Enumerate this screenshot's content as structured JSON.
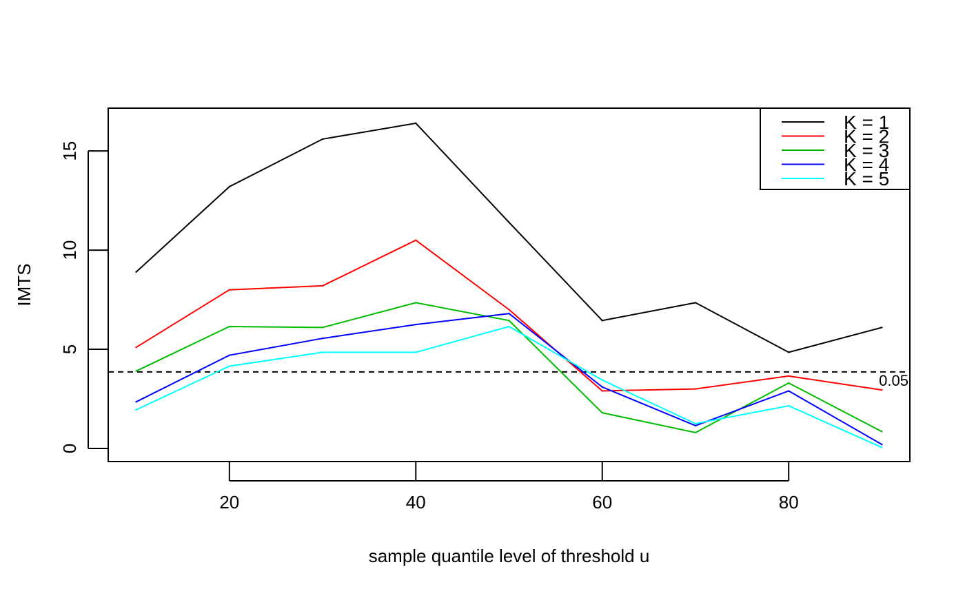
{
  "chart_data": {
    "type": "line",
    "title": "",
    "xlabel": "sample quantile level of threshold u",
    "ylabel": "IMTS",
    "xlim": [
      7,
      93
    ],
    "ylim": [
      -0.66,
      17.16
    ],
    "x_ticks": [
      20,
      40,
      60,
      80
    ],
    "x_tick_labels": [
      "20",
      "40",
      "60",
      "80"
    ],
    "y_ticks": [
      0,
      5,
      10,
      15
    ],
    "y_tick_labels": [
      "0",
      "5",
      "10",
      "15"
    ],
    "x": [
      10,
      20,
      30,
      40,
      50,
      60,
      70,
      80,
      90
    ],
    "series": [
      {
        "name": "K = 1",
        "color": "#000000",
        "values": [
          8.9,
          13.2,
          15.6,
          16.4,
          11.4,
          6.45,
          7.35,
          4.85,
          6.1
        ]
      },
      {
        "name": "K = 2",
        "color": "#ff0000",
        "values": [
          5.1,
          8.0,
          8.2,
          10.5,
          7.0,
          2.9,
          3.0,
          3.65,
          2.95
        ]
      },
      {
        "name": "K = 3",
        "color": "#00bb00",
        "values": [
          3.9,
          6.15,
          6.1,
          7.35,
          6.45,
          1.8,
          0.8,
          3.3,
          0.85
        ]
      },
      {
        "name": "K = 4",
        "color": "#0000ff",
        "values": [
          2.35,
          4.7,
          5.55,
          6.25,
          6.8,
          3.1,
          1.15,
          2.9,
          0.2
        ]
      },
      {
        "name": "K = 5",
        "color": "#00ffff",
        "values": [
          1.95,
          4.15,
          4.85,
          4.85,
          6.15,
          3.45,
          1.25,
          2.15,
          0.05
        ]
      }
    ],
    "reference_line": {
      "y": 3.86,
      "label": "0.05",
      "style": "dashed",
      "color": "#000000"
    },
    "grid": false,
    "legend": {
      "position": "top-right"
    }
  }
}
